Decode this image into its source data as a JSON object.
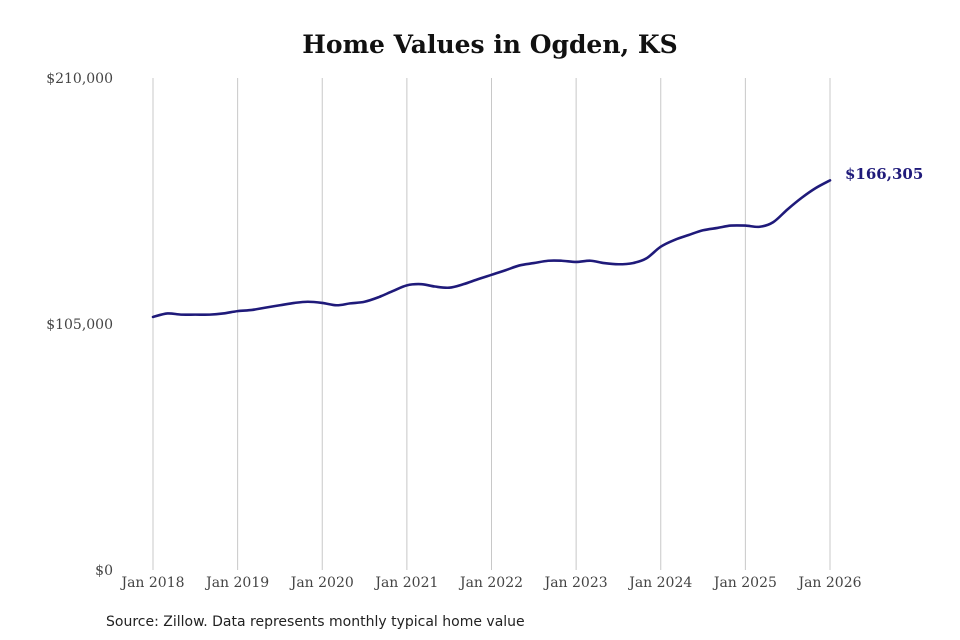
{
  "chart_data": {
    "type": "line",
    "title": "Home Values in Ogden, KS",
    "source": "Source: Zillow. Data represents monthly typical home value",
    "y_ticks": [
      "$210,000",
      "$105,000",
      "$0"
    ],
    "y_tick_values": [
      210000,
      105000,
      0
    ],
    "ylim": [
      0,
      210000
    ],
    "x_ticks": [
      "Jan 2018",
      "Jan 2019",
      "Jan 2020",
      "Jan 2021",
      "Jan 2022",
      "Jan 2023",
      "Jan 2024",
      "Jan 2025",
      "Jan 2026"
    ],
    "x_tick_values": [
      2018,
      2019,
      2020,
      2021,
      2022,
      2023,
      2024,
      2025,
      2026
    ],
    "xlim": [
      2018,
      2026
    ],
    "grid": "vertical",
    "legend": "none",
    "line_color": "#1f1a7a",
    "end_label": "$166,305",
    "series": [
      {
        "x": [
          2018.0,
          2018.17,
          2018.33,
          2018.5,
          2018.67,
          2018.83,
          2019.0,
          2019.17,
          2019.33,
          2019.5,
          2019.67,
          2019.83,
          2020.0,
          2020.17,
          2020.33,
          2020.5,
          2020.67,
          2020.83,
          2021.0,
          2021.17,
          2021.33,
          2021.5,
          2021.67,
          2021.83,
          2022.0,
          2022.17,
          2022.33,
          2022.5,
          2022.67,
          2022.83,
          2023.0,
          2023.17,
          2023.33,
          2023.5,
          2023.67,
          2023.83,
          2024.0,
          2024.17,
          2024.33,
          2024.5,
          2024.67,
          2024.83,
          2025.0,
          2025.17,
          2025.33,
          2025.5,
          2025.67,
          2025.83,
          2026.0
        ],
        "values": [
          108000,
          109500,
          109000,
          109000,
          109000,
          109500,
          110500,
          111000,
          112000,
          113000,
          114000,
          114500,
          114000,
          113000,
          113800,
          114500,
          116500,
          119000,
          121500,
          122000,
          121000,
          120500,
          122000,
          124000,
          126000,
          128000,
          130000,
          131000,
          132000,
          132000,
          131500,
          132000,
          131000,
          130500,
          131000,
          133000,
          138000,
          141000,
          143000,
          145000,
          146000,
          147000,
          147000,
          146500,
          148500,
          154000,
          159000,
          163000,
          166305
        ]
      }
    ]
  }
}
